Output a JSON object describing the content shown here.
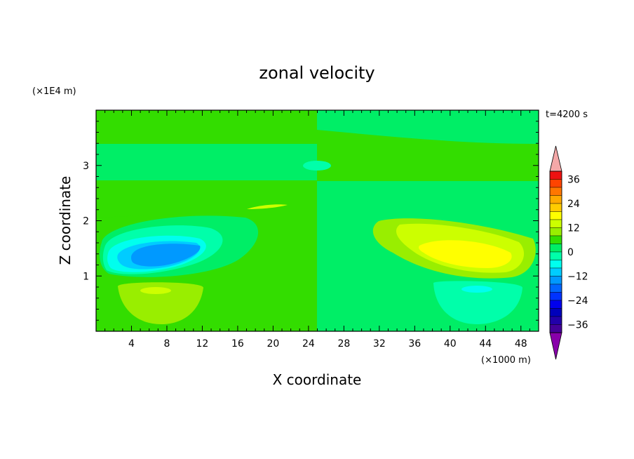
{
  "chart_data": {
    "type": "heatmap",
    "title": "zonal velocity",
    "xlabel": "X coordinate",
    "ylabel": "Z coordinate",
    "x_unit": "(×1000 m)",
    "y_unit": "(×1E4 m)",
    "time_label": "t=4200 s",
    "xlim": [
      0,
      50
    ],
    "ylim": [
      0,
      4
    ],
    "x_ticks": [
      4,
      8,
      12,
      16,
      20,
      24,
      28,
      32,
      36,
      40,
      44,
      48
    ],
    "y_ticks": [
      1,
      2,
      3
    ],
    "colorbar": {
      "min": -40,
      "max": 40,
      "step": 4,
      "tick_values": [
        36,
        24,
        12,
        0,
        -12,
        -24,
        -36
      ],
      "tick_labels": [
        "36",
        "24",
        "12",
        "0",
        "−12",
        "−24",
        "−36"
      ],
      "colors_top_to_bottom": [
        "#ee1111",
        "#ff4400",
        "#ff7700",
        "#ffaa00",
        "#ffcc00",
        "#ffff00",
        "#ccff00",
        "#99ee00",
        "#33dd00",
        "#00ee66",
        "#00ffaa",
        "#00ffee",
        "#00ccff",
        "#0099ff",
        "#0066ff",
        "#0033ff",
        "#0000ee",
        "#0000bb",
        "#2200aa",
        "#440099"
      ],
      "over_color": "#f4a8a8",
      "under_color": "#8800aa"
    },
    "features": [
      {
        "name": "negative-core-left",
        "x": 9,
        "z": 1.45,
        "value": -16
      },
      {
        "name": "positive-core-right",
        "x": 42,
        "z": 1.45,
        "value": 12
      },
      {
        "name": "positive-lobe-left-low",
        "x": 8,
        "z": 0.6,
        "value": 8
      },
      {
        "name": "negative-lobe-right-low",
        "x": 42,
        "z": 0.6,
        "value": -8
      }
    ]
  }
}
